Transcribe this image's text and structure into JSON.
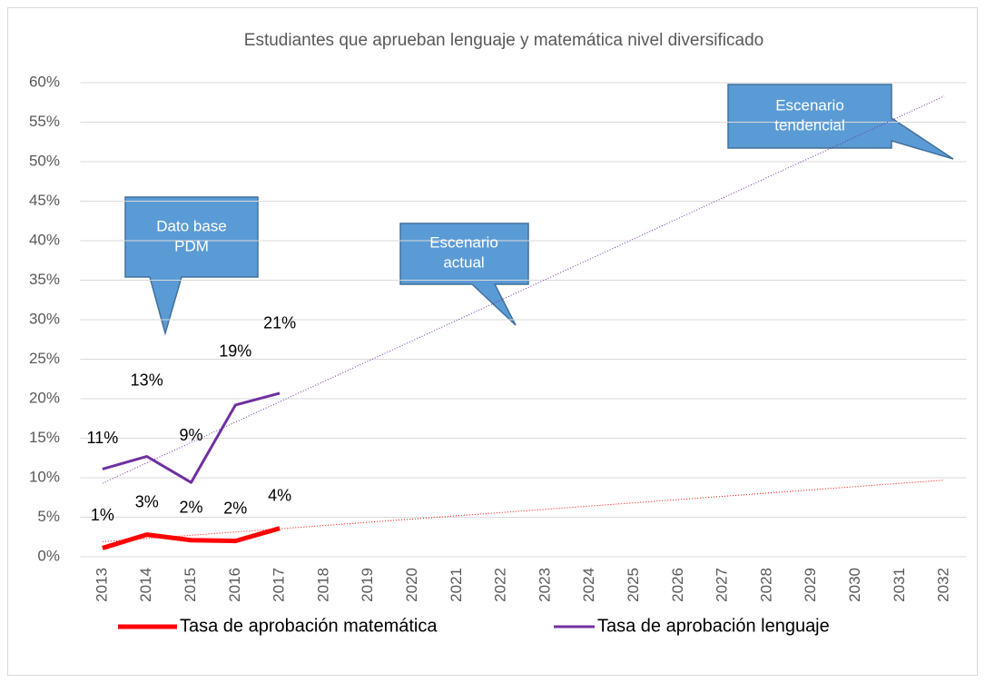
{
  "chart_data": {
    "type": "line",
    "title": "Estudiantes que aprueban lenguaje y matemática nivel diversificado",
    "categories": [
      "2013",
      "2014",
      "2015",
      "2016",
      "2017",
      "2018",
      "2019",
      "2020",
      "2021",
      "2022",
      "2023",
      "2024",
      "2025",
      "2026",
      "2027",
      "2028",
      "2029",
      "2030",
      "2031",
      "2032"
    ],
    "ylim": [
      0,
      60
    ],
    "yticks": [
      {
        "value": 0,
        "label": "0%"
      },
      {
        "value": 5,
        "label": "5%"
      },
      {
        "value": 10,
        "label": "10%"
      },
      {
        "value": 15,
        "label": "15%"
      },
      {
        "value": 20,
        "label": "20%"
      },
      {
        "value": 25,
        "label": "25%"
      },
      {
        "value": 30,
        "label": "30%"
      },
      {
        "value": 35,
        "label": "35%"
      },
      {
        "value": 40,
        "label": "40%"
      },
      {
        "value": 45,
        "label": "45%"
      },
      {
        "value": 50,
        "label": "50%"
      },
      {
        "value": 55,
        "label": "55%"
      },
      {
        "value": 60,
        "label": "60%"
      }
    ],
    "grid": true,
    "legend": "bottom",
    "series": [
      {
        "name": "Tasa de aprobación matemática",
        "color": "#ff0000",
        "width": 5,
        "values": [
          1.1,
          2.8,
          2.1,
          2.0,
          3.6,
          null,
          null,
          null,
          null,
          null,
          null,
          null,
          null,
          null,
          null,
          null,
          null,
          null,
          null,
          null
        ],
        "value_labels": [
          "1%",
          "3%",
          "2%",
          "2%",
          "4%",
          null,
          null,
          null,
          null,
          null,
          null,
          null,
          null,
          null,
          null,
          null,
          null,
          null,
          null,
          null
        ],
        "trend": [
          1.9,
          9.7
        ]
      },
      {
        "name": "Tasa de aprobación lenguaje",
        "color": "#7030a0",
        "width": 3,
        "values": [
          11.1,
          12.7,
          9.4,
          19.2,
          20.7,
          null,
          null,
          null,
          null,
          null,
          null,
          null,
          null,
          null,
          null,
          null,
          null,
          null,
          null,
          null
        ],
        "value_labels": [
          "11%",
          "13%",
          "9%",
          "19%",
          "21%",
          null,
          null,
          null,
          null,
          null,
          null,
          null,
          null,
          null,
          null,
          null,
          null,
          null,
          null,
          null
        ],
        "trend": [
          9.3,
          58.3
        ]
      }
    ],
    "annotations": [
      {
        "lines": [
          "Dato base",
          "PDM"
        ]
      },
      {
        "lines": [
          "Escenario",
          "actual"
        ]
      },
      {
        "lines": [
          "Escenario",
          "tendencial"
        ]
      }
    ]
  }
}
